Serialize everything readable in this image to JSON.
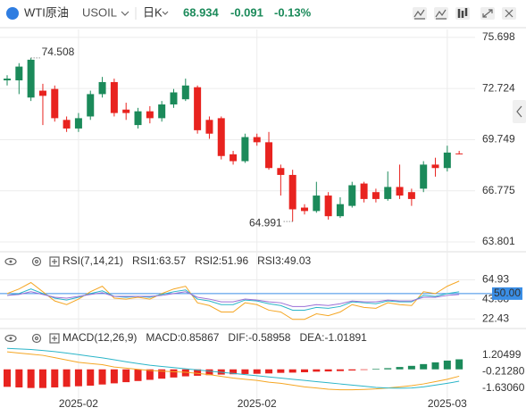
{
  "header": {
    "name": "WTI原油",
    "symbol": "USOIL",
    "period": "日K",
    "price": 68.934,
    "change": -0.091,
    "change_percent": "-0.13%"
  },
  "chart_data": [
    {
      "type": "candlestick",
      "categories": [
        null,
        null,
        null,
        null,
        null,
        null,
        "2025-02",
        null,
        null,
        null,
        null,
        null,
        null,
        null,
        null,
        null,
        null,
        null,
        null,
        null,
        null,
        "2025-02",
        null,
        null,
        null,
        null,
        null,
        null,
        null,
        null,
        null,
        null,
        null,
        null,
        null,
        null,
        null,
        "2025-03",
        null
      ],
      "open": [
        73.2,
        73.2,
        72.2,
        72.6,
        72.7,
        70.9,
        70.4,
        71.1,
        72.4,
        73.1,
        71.5,
        70.6,
        71.4,
        71.0,
        71.8,
        72.1,
        72.8,
        70.9,
        71.0,
        68.9,
        68.5,
        69.9,
        69.6,
        68.1,
        67.7,
        65.8,
        65.6,
        66.5,
        65.3,
        65.9,
        67.2,
        66.7,
        66.3,
        67.0,
        66.7,
        66.9,
        68.3,
        68.1,
        68.95
      ],
      "high": [
        73.5,
        74.2,
        74.508,
        73.0,
        72.9,
        71.1,
        71.3,
        72.6,
        73.4,
        73.3,
        71.9,
        71.6,
        71.7,
        72.0,
        72.7,
        73.3,
        72.9,
        71.1,
        71.1,
        69.1,
        70.1,
        70.1,
        70.2,
        68.3,
        68.0,
        66.0,
        67.3,
        66.7,
        66.4,
        67.3,
        67.3,
        66.9,
        67.9,
        68.3,
        66.9,
        68.5,
        68.7,
        69.4,
        69.1
      ],
      "low": [
        72.9,
        72.4,
        72.0,
        70.6,
        70.8,
        70.2,
        70.2,
        70.9,
        72.2,
        71.1,
        70.9,
        70.4,
        70.7,
        70.8,
        71.6,
        72.0,
        70.1,
        69.8,
        68.6,
        68.3,
        68.4,
        69.4,
        68.0,
        66.5,
        64.991,
        65.4,
        65.5,
        65.1,
        65.2,
        65.8,
        66.1,
        66.1,
        66.2,
        66.3,
        65.9,
        66.7,
        67.6,
        67.9,
        68.9
      ],
      "close": [
        73.3,
        74.0,
        74.4,
        72.3,
        71.0,
        70.4,
        71.0,
        72.4,
        73.1,
        71.3,
        71.3,
        71.4,
        71.0,
        71.8,
        72.5,
        72.9,
        70.3,
        70.1,
        68.8,
        68.5,
        69.9,
        69.6,
        68.1,
        67.7,
        65.7,
        65.6,
        66.5,
        65.3,
        66.0,
        67.1,
        66.3,
        66.3,
        67.0,
        66.5,
        66.3,
        68.3,
        68.1,
        69.0,
        68.934
      ],
      "up_color": "#1b8a5a",
      "down_color": "#e8231f",
      "ylim": [
        63.44,
        76.16
      ],
      "yticks": [
        75.698,
        72.724,
        69.749,
        66.775,
        63.801
      ],
      "grid": true
    },
    {
      "type": "line",
      "title": "RSI(7,14,21)",
      "series": [
        {
          "name": "RSI1:63.57",
          "color": "#f5a623",
          "values": [
            50,
            55,
            62,
            52,
            42,
            38,
            44,
            52,
            58,
            45,
            44,
            46,
            44,
            50,
            55,
            58,
            40,
            37,
            30,
            30,
            40,
            38,
            32,
            30,
            22,
            22,
            28,
            26,
            30,
            38,
            35,
            34,
            40,
            38,
            37,
            52,
            50,
            58,
            63.57
          ]
        },
        {
          "name": "RSI2:51.96",
          "color": "#2bb5c8",
          "values": [
            48,
            50,
            55,
            50,
            45,
            43,
            46,
            50,
            53,
            47,
            46,
            47,
            46,
            49,
            52,
            54,
            44,
            42,
            38,
            38,
            43,
            42,
            39,
            37,
            32,
            32,
            35,
            34,
            36,
            41,
            40,
            39,
            42,
            41,
            41,
            48,
            47,
            50,
            51.96
          ]
        },
        {
          "name": "RSI3:49.03",
          "color": "#9b6fd6",
          "values": [
            48,
            49,
            52,
            49,
            46,
            45,
            47,
            49,
            51,
            47,
            47,
            47,
            47,
            48,
            50,
            52,
            46,
            44,
            41,
            41,
            44,
            43,
            41,
            40,
            36,
            36,
            38,
            37,
            39,
            42,
            41,
            41,
            43,
            42,
            42,
            46,
            46,
            48,
            49.03
          ]
        }
      ],
      "reference": {
        "value": 50,
        "label": "50.00",
        "color": "#3a8ee6"
      },
      "ylim": [
        14,
        78
      ],
      "yticks": [
        64.93,
        43.68,
        22.43
      ],
      "grid": true
    },
    {
      "type": "macd",
      "title": "MACD(12,26,9)",
      "series": [
        {
          "name": "MACD:0.85867",
          "color": "#9b6fd6",
          "up_color": "#1b8a5a",
          "down_color": "#e8231f",
          "values": [
            -1.5,
            -1.55,
            -1.6,
            -1.6,
            -1.55,
            -1.5,
            -1.45,
            -1.4,
            -1.3,
            -1.2,
            -1.1,
            -1.0,
            -0.9,
            -0.8,
            -0.7,
            -0.6,
            -0.55,
            -0.5,
            -0.45,
            -0.42,
            -0.4,
            -0.38,
            -0.35,
            -0.3,
            -0.28,
            -0.25,
            -0.2,
            -0.18,
            -0.15,
            -0.1,
            -0.05,
            0.05,
            0.1,
            0.2,
            0.3,
            0.45,
            0.6,
            0.75,
            0.85867
          ]
        },
        {
          "name": "DIF:-0.58958",
          "color": "#f5a623",
          "values": [
            1.5,
            1.4,
            1.3,
            1.2,
            1.0,
            0.8,
            0.6,
            0.5,
            0.4,
            0.2,
            0.1,
            0,
            -0.1,
            -0.15,
            -0.2,
            -0.25,
            -0.35,
            -0.45,
            -0.6,
            -0.75,
            -0.85,
            -0.95,
            -1.1,
            -1.2,
            -1.35,
            -1.5,
            -1.6,
            -1.7,
            -1.75,
            -1.75,
            -1.72,
            -1.68,
            -1.6,
            -1.5,
            -1.4,
            -1.25,
            -1.05,
            -0.85,
            -0.58958
          ]
        },
        {
          "name": "DEA:-1.01891",
          "color": "#2bb5c8",
          "values": [
            1.8,
            1.75,
            1.7,
            1.62,
            1.52,
            1.4,
            1.26,
            1.12,
            0.98,
            0.82,
            0.65,
            0.5,
            0.35,
            0.25,
            0.15,
            0.05,
            -0.05,
            -0.15,
            -0.25,
            -0.35,
            -0.45,
            -0.55,
            -0.65,
            -0.75,
            -0.85,
            -0.95,
            -1.05,
            -1.15,
            -1.25,
            -1.35,
            -1.45,
            -1.55,
            -1.6,
            -1.62,
            -1.6,
            -1.5,
            -1.35,
            -1.2,
            -1.01891
          ]
        }
      ],
      "ylim": [
        -2.47,
        1.97
      ],
      "yticks": [
        1.20499,
        {
          "value": -0.2128,
          "label": "-0.21280"
        },
        {
          "value": -1.6306,
          "label": "-1.63060"
        }
      ],
      "grid": false
    }
  ]
}
